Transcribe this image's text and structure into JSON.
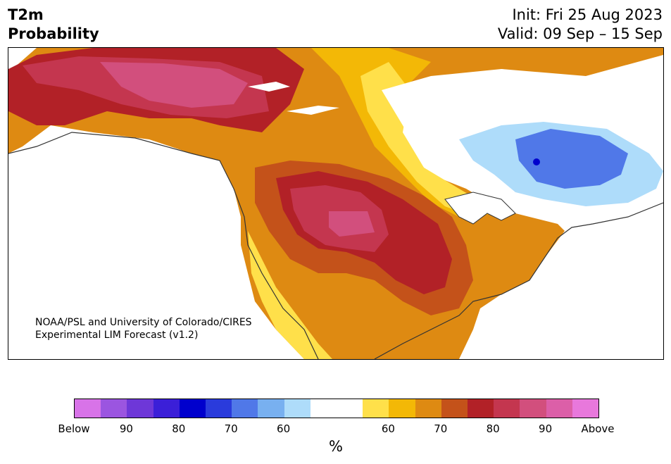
{
  "header": {
    "title_line1": "T2m",
    "title_line2": "Probability",
    "init": "Init: Fri 25 Aug 2023",
    "valid": "Valid: 09 Sep – 15 Sep"
  },
  "map": {
    "credit_line1": "NOAA/PSL and University of Colorado/CIRES",
    "credit_line2": "Experimental LIM Forecast (v1.2)",
    "region": "North America",
    "pattern": [
      {
        "area": "Alaska and Yukon",
        "category": "Above",
        "probability": "80-90"
      },
      {
        "area": "Northern Plains",
        "category": "Above",
        "probability": "80-90"
      },
      {
        "area": "Central and Southern Plains",
        "category": "Above",
        "probability": "70-80"
      },
      {
        "area": "Southeast US",
        "category": "Above",
        "probability": "60-70"
      },
      {
        "area": "Quebec",
        "category": "Below",
        "probability": "70-80"
      },
      {
        "area": "Hudson Bay region",
        "category": "Near normal",
        "probability": ""
      }
    ]
  },
  "colorbar": {
    "colors": [
      "#d873e8",
      "#9b55e0",
      "#6e37d8",
      "#3b1fd8",
      "#0000cd",
      "#2a3bdc",
      "#5078e8",
      "#78b0f0",
      "#aedcfa",
      "#ffffff",
      "#ffffff",
      "#ffe04a",
      "#f3b806",
      "#de8a12",
      "#c4521a",
      "#b22127",
      "#c4364f",
      "#d24f7d",
      "#dc5fa8",
      "#e878dc"
    ],
    "tick_labels": [
      "Below",
      "90",
      "80",
      "70",
      "60",
      "60",
      "70",
      "80",
      "90",
      "Above"
    ],
    "unit": "%"
  }
}
